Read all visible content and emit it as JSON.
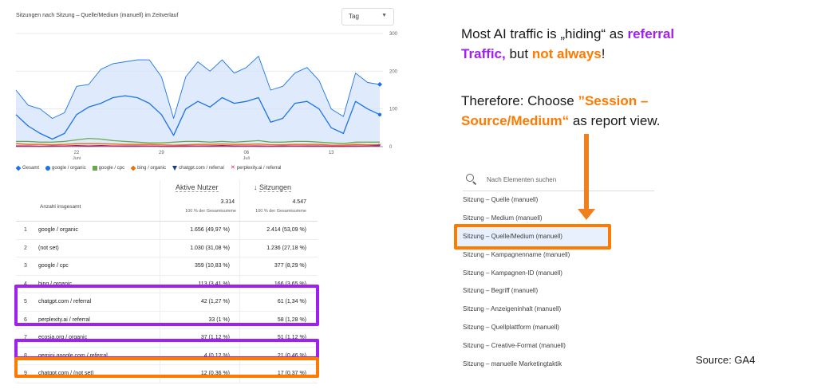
{
  "chart_data": {
    "type": "line",
    "title": "Sitzungen nach Sitzung – Quelle/Medium (manuell) im Zeitverlauf",
    "granularity": "Tag",
    "ylim": [
      0,
      300
    ],
    "yticks": [
      "300",
      "200",
      "100",
      "0"
    ],
    "xticks": [
      {
        "label": "22",
        "sub": "Juni",
        "index": 5
      },
      {
        "label": "29",
        "sub": "",
        "index": 12
      },
      {
        "label": "06",
        "sub": "Juli",
        "index": 19
      },
      {
        "label": "13",
        "sub": "",
        "index": 26
      }
    ],
    "grid": true,
    "legend_position": "bottom",
    "series": [
      {
        "name": "Gesamt",
        "color": "#1a73e8",
        "fill": "#d2e3fc",
        "marker": "diamond",
        "values": [
          150,
          110,
          100,
          75,
          90,
          160,
          165,
          205,
          220,
          225,
          230,
          230,
          185,
          75,
          185,
          225,
          200,
          230,
          195,
          210,
          240,
          150,
          160,
          195,
          210,
          175,
          100,
          80,
          195,
          170,
          165
        ]
      },
      {
        "name": "google / organic",
        "color": "#1a73e8",
        "marker": "circle",
        "values": [
          85,
          55,
          35,
          20,
          35,
          85,
          105,
          115,
          130,
          135,
          130,
          115,
          85,
          30,
          100,
          120,
          105,
          130,
          115,
          120,
          130,
          65,
          75,
          115,
          120,
          100,
          50,
          35,
          120,
          100,
          85
        ]
      },
      {
        "name": "google / cpc",
        "color": "#6aa84f",
        "marker": "square",
        "values": [
          14,
          14,
          12,
          12,
          14,
          18,
          22,
          20,
          16,
          14,
          12,
          10,
          10,
          12,
          14,
          14,
          12,
          14,
          12,
          14,
          16,
          12,
          12,
          14,
          14,
          12,
          10,
          8,
          12,
          12,
          12
        ]
      },
      {
        "name": "bing / organic",
        "color": "#e8710a",
        "marker": "diamond",
        "values": [
          8,
          6,
          6,
          5,
          6,
          8,
          8,
          8,
          7,
          6,
          6,
          6,
          5,
          4,
          5,
          6,
          6,
          7,
          6,
          6,
          7,
          5,
          5,
          6,
          6,
          6,
          4,
          4,
          6,
          5,
          5
        ]
      },
      {
        "name": "chatgpt.com / referral",
        "color": "#1e3a8a",
        "marker": "triangle",
        "values": [
          2,
          2,
          1,
          2,
          2,
          3,
          2,
          3,
          2,
          2,
          2,
          2,
          1,
          1,
          2,
          2,
          2,
          3,
          2,
          2,
          2,
          1,
          2,
          2,
          2,
          2,
          1,
          1,
          2,
          2,
          2
        ]
      },
      {
        "name": "perplexity.ai / referral",
        "color": "#d81b60",
        "marker": "cross",
        "values": [
          1,
          1,
          1,
          1,
          2,
          2,
          1,
          2,
          2,
          1,
          1,
          2,
          1,
          1,
          1,
          2,
          1,
          2,
          1,
          2,
          1,
          1,
          1,
          2,
          1,
          1,
          1,
          1,
          1,
          2,
          4
        ]
      }
    ]
  },
  "table": {
    "dimension_header": "Anzahl insgesamt",
    "metric1": {
      "label": "Aktive Nutzer",
      "total": "3.314",
      "total_sub": "100 % der Gesamtsumme"
    },
    "metric2": {
      "label": "Sitzungen",
      "sort_icon": "↓",
      "total": "4.547",
      "total_sub": "100 % der Gesamtsumme"
    },
    "rows": [
      {
        "idx": "1",
        "dim": "google / organic",
        "m1": "1.656 (49,97 %)",
        "m2": "2.414 (53,09 %)"
      },
      {
        "idx": "2",
        "dim": "(not set)",
        "m1": "1.030 (31,08 %)",
        "m2": "1.236 (27,18 %)"
      },
      {
        "idx": "3",
        "dim": "google / cpc",
        "m1": "359 (10,83 %)",
        "m2": "377 (8,29 %)"
      },
      {
        "idx": "4",
        "dim": "bing / organic",
        "m1": "113 (3,41 %)",
        "m2": "166 (3,65 %)"
      },
      {
        "idx": "5",
        "dim": "chatgpt.com / referral",
        "m1": "42 (1,27 %)",
        "m2": "61 (1,34 %)"
      },
      {
        "idx": "6",
        "dim": "perplexity.ai / referral",
        "m1": "33 (1 %)",
        "m2": "58 (1,28 %)"
      },
      {
        "idx": "7",
        "dim": "ecosia.org / organic",
        "m1": "37 (1,12 %)",
        "m2": "51 (1,12 %)"
      },
      {
        "idx": "8",
        "dim": "gemini.google.com / referral",
        "m1": "4 (0,12 %)",
        "m2": "21 (0,46 %)"
      },
      {
        "idx": "9",
        "dim": "chatgpt.com / (not set)",
        "m1": "12 (0,36 %)",
        "m2": "17 (0,37 %)"
      }
    ]
  },
  "highlight_colors": {
    "purple": "#a020f0",
    "orange": "#ff7a00"
  },
  "note": {
    "l1a": "Most AI traffic is „hiding“ as ",
    "l1b": "referral",
    "l2a": "Traffic,",
    "l2b": " but ",
    "l2c": "not always",
    "l2d": "!",
    "p2a": "Therefore: Choose ",
    "p2b": "”Session –",
    "p2c": "Source/Medium“",
    "p2d": " as report view."
  },
  "search": {
    "placeholder": "Nach Elementen suchen",
    "icon": "search-icon"
  },
  "menu_items": [
    "Sitzung – Quelle (manuell)",
    "Sitzung – Medium (manuell)",
    "Sitzung – Quelle/Medium (manuell)",
    "Sitzung – Kampagnenname (manuell)",
    "Sitzung – Kampagnen-ID (manuell)",
    "Sitzung – Begriff (manuell)",
    "Sitzung – Anzeigeninhalt (manuell)",
    "Sitzung – Quellplattform (manuell)",
    "Sitzung – Creative-Format (manuell)",
    "Sitzung – manuelle Marketingtaktik"
  ],
  "selected_menu_index": 2,
  "source": "Source: GA4"
}
